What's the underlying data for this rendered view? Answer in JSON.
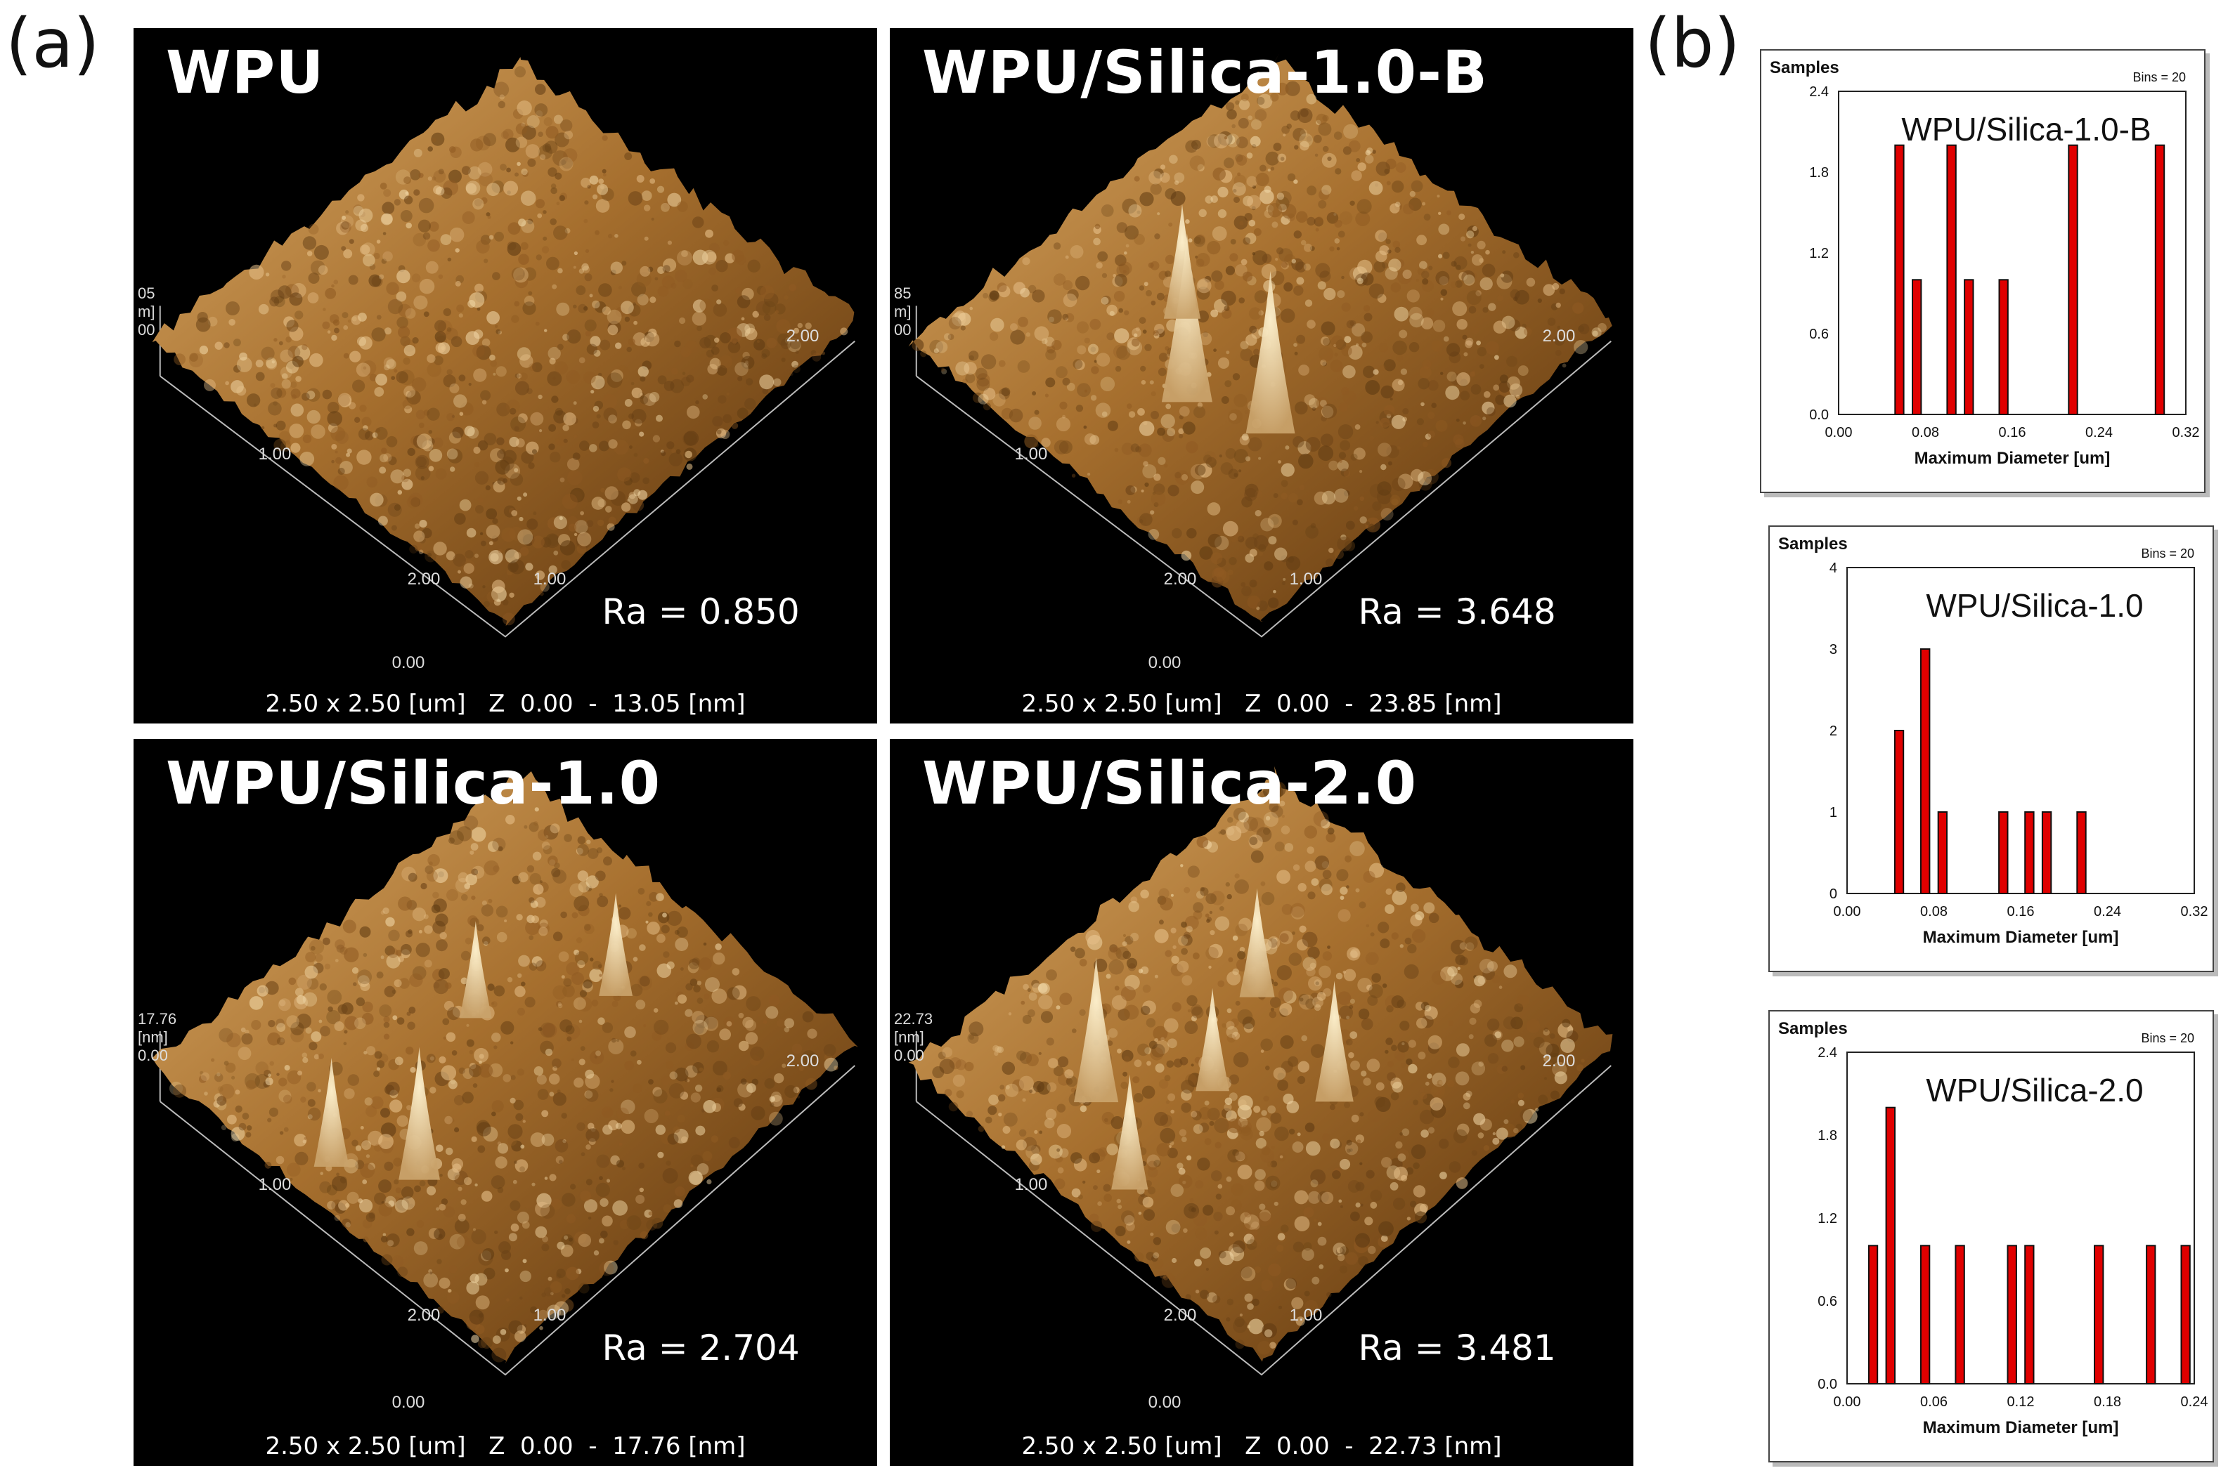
{
  "panel_labels": {
    "a": "(a)",
    "b": "(b)"
  },
  "afm_images": [
    {
      "sample": "WPU",
      "ra": "Ra = 0.850",
      "xy_label": "2.50 x 2.50 [um]",
      "z_label": "Z  0.00  -  13.05 [nm]",
      "z_ticks": [
        "05",
        "m]",
        "00"
      ],
      "axis_ticks": [
        "1.00",
        "2.00",
        "0.00",
        "1.00",
        "2.00"
      ],
      "peaks": []
    },
    {
      "sample": "WPU/Silica-1.0-B",
      "ra": "Ra = 3.648",
      "xy_label": "2.50 x 2.50 [um]",
      "z_label": "Z  0.00  -  23.85 [nm]",
      "z_ticks": [
        "85",
        "m]",
        "00"
      ],
      "axis_ticks": [
        "1.00",
        "2.00",
        "0.00",
        "1.00",
        "2.00"
      ],
      "peaks": [
        [
          0.3,
          0.48,
          1.0
        ],
        [
          0.44,
          0.32,
          0.55
        ],
        [
          0.36,
          0.66,
          0.95
        ]
      ]
    },
    {
      "sample": "WPU/Silica-1.0",
      "ra": "Ra = 2.704",
      "xy_label": "2.50 x 2.50 [um]",
      "z_label": "Z  0.00  -  17.76 [nm]",
      "z_ticks": [
        "17.76",
        "[nm]",
        "0.00"
      ],
      "axis_ticks": [
        "1.00",
        "2.00",
        "0.00",
        "1.00",
        "2.00"
      ],
      "peaks": [
        [
          0.2,
          0.55,
          0.7
        ],
        [
          0.55,
          0.35,
          0.4
        ],
        [
          0.78,
          0.52,
          0.45
        ],
        [
          0.1,
          0.4,
          0.5
        ]
      ]
    },
    {
      "sample": "WPU/Silica-2.0",
      "ra": "Ra = 3.481",
      "xy_label": "2.50 x 2.50 [um]",
      "z_label": "Z  0.00  -  22.73 [nm]",
      "z_ticks": [
        "22.73",
        "[nm]",
        "0.00"
      ],
      "axis_ticks": [
        "1.00",
        "2.00",
        "0.00",
        "1.00",
        "2.00"
      ],
      "peaks": [
        [
          0.22,
          0.3,
          0.8
        ],
        [
          0.55,
          0.65,
          0.6
        ],
        [
          0.12,
          0.5,
          0.55
        ],
        [
          0.62,
          0.35,
          0.5
        ],
        [
          0.4,
          0.45,
          0.45
        ]
      ]
    }
  ],
  "chart_data": [
    {
      "type": "bar",
      "title": "WPU/Silica-1.0-B",
      "ylabel": "Samples",
      "xlabel": "Maximum Diameter [um]",
      "bins_label": "Bins = 20",
      "ylim": [
        0,
        2.4
      ],
      "xlim": [
        0,
        0.32
      ],
      "yticks": [
        "0.0",
        "0.6",
        "1.2",
        "1.8",
        "2.4"
      ],
      "xticks": [
        "0.00",
        "0.08",
        "0.16",
        "0.24",
        "0.32"
      ],
      "bin_width": 0.008,
      "x": [
        0.056,
        0.072,
        0.104,
        0.12,
        0.152,
        0.216,
        0.296
      ],
      "values": [
        2,
        1,
        2,
        1,
        1,
        2,
        2
      ],
      "color": "#e00000"
    },
    {
      "type": "bar",
      "title": "WPU/Silica-1.0",
      "ylabel": "Samples",
      "xlabel": "Maximum Diameter [um]",
      "bins_label": "Bins = 20",
      "ylim": [
        0,
        4
      ],
      "xlim": [
        0,
        0.32
      ],
      "yticks": [
        "0",
        "1",
        "2",
        "3",
        "4"
      ],
      "xticks": [
        "0.00",
        "0.08",
        "0.16",
        "0.24",
        "0.32"
      ],
      "bin_width": 0.008,
      "x": [
        0.048,
        0.072,
        0.088,
        0.144,
        0.168,
        0.184,
        0.216
      ],
      "values": [
        2,
        3,
        1,
        1,
        1,
        1,
        1
      ],
      "color": "#e00000"
    },
    {
      "type": "bar",
      "title": "WPU/Silica-2.0",
      "ylabel": "Samples",
      "xlabel": "Maximum Diameter [um]",
      "bins_label": "Bins = 20",
      "ylim": [
        0,
        2.4
      ],
      "xlim": [
        0,
        0.24
      ],
      "yticks": [
        "0.0",
        "0.6",
        "1.2",
        "1.8",
        "2.4"
      ],
      "xticks": [
        "0.00",
        "0.06",
        "0.12",
        "0.18",
        "0.24"
      ],
      "bin_width": 0.006,
      "x": [
        0.018,
        0.03,
        0.054,
        0.078,
        0.114,
        0.126,
        0.174,
        0.21,
        0.234
      ],
      "values": [
        1,
        2,
        1,
        1,
        1,
        1,
        1,
        1,
        1
      ],
      "color": "#e00000"
    }
  ]
}
